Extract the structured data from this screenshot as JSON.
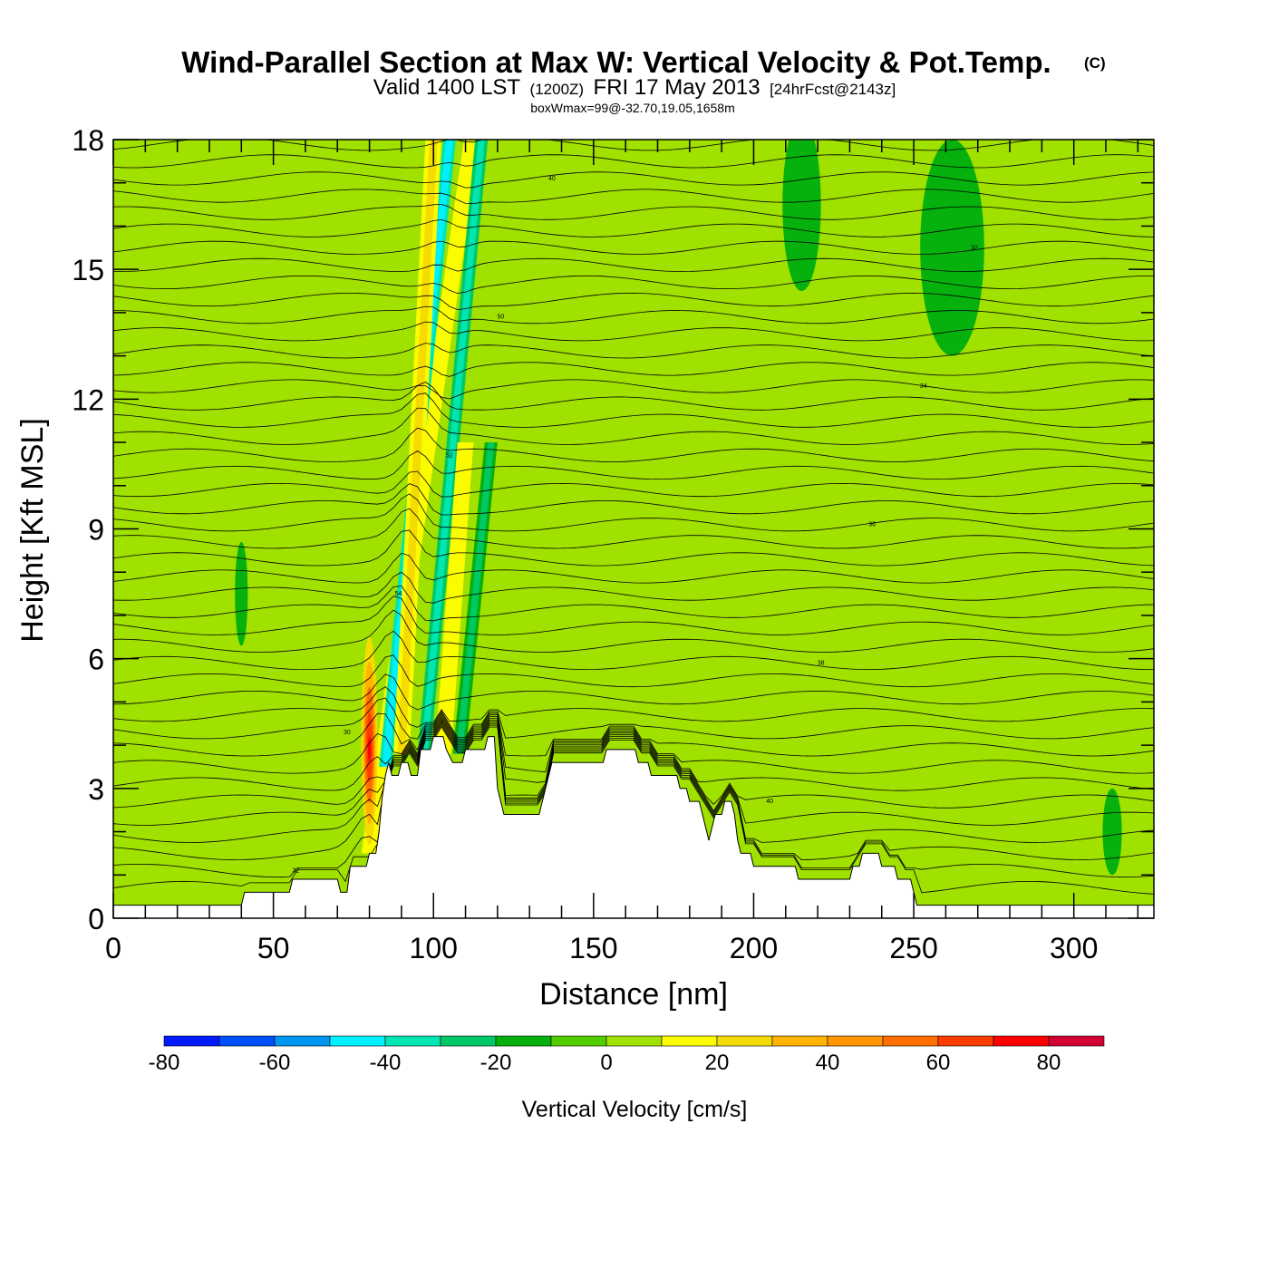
{
  "title": {
    "main": "Wind-Parallel Section at Max W: Vertical Velocity & Pot.Temp.",
    "copyright": "(C)",
    "line2_a": "Valid 1400 LST",
    "line2_b": "(1200Z)",
    "line2_c": "FRI 17 May 2013",
    "line2_d": "[24hrFcst@2143z]",
    "line3": "boxWmax=99@-32.70,19.05,1658m"
  },
  "chart_data": {
    "type": "heatmap",
    "xlabel": "Distance [nm]",
    "ylabel": "Height [Kft MSL]",
    "xlim": [
      0,
      325
    ],
    "ylim": [
      0,
      18
    ],
    "xticks": [
      "0",
      "50",
      "100",
      "150",
      "200",
      "250",
      "300"
    ],
    "yticks": [
      "0",
      "3",
      "6",
      "9",
      "12",
      "15",
      "18"
    ],
    "colorbar": {
      "title": "Vertical Velocity [cm/s]",
      "tick_labels": [
        "-80",
        "-60",
        "-40",
        "-20",
        "0",
        "20",
        "40",
        "60",
        "80"
      ],
      "bins": [
        -80,
        -70,
        -60,
        -50,
        -40,
        -30,
        -20,
        -10,
        0,
        10,
        20,
        30,
        40,
        50,
        60,
        70,
        80,
        90
      ],
      "colors": [
        "#0019ff",
        "#0050ff",
        "#0096f0",
        "#00f0ff",
        "#00e6b0",
        "#00c864",
        "#06b10e",
        "#52cd00",
        "#a0e100",
        "#fcfc00",
        "#f5dc00",
        "#ffb400",
        "#ff9600",
        "#ff6e00",
        "#ff3c00",
        "#ff0000",
        "#d20032"
      ]
    },
    "background_w_cms": 0,
    "plumes": [
      {
        "x_base": 80,
        "z_base": 1.5,
        "x_top": 112,
        "z_top": 18,
        "halfwidth_nm": 2.5,
        "w_cms": 15,
        "min_w_cms": 10
      },
      {
        "x_base": 85,
        "z_base": 3.5,
        "x_top": 105,
        "z_top": 18,
        "halfwidth_nm": 2.0,
        "w_cms": -45,
        "min_w_cms": -40
      },
      {
        "x_base": 90,
        "z_base": 3.8,
        "x_top": 100,
        "z_top": 18,
        "halfwidth_nm": 2.5,
        "w_cms": 20,
        "min_w_cms": 10
      },
      {
        "x_base": 97,
        "z_base": 3.8,
        "x_top": 115,
        "z_top": 18,
        "halfwidth_nm": 2.0,
        "w_cms": -35,
        "min_w_cms": -30
      },
      {
        "x_base": 103,
        "z_base": 3.8,
        "x_top": 110,
        "z_top": 11,
        "halfwidth_nm": 2.5,
        "w_cms": 15,
        "min_w_cms": 10
      },
      {
        "x_base": 108,
        "z_base": 3.8,
        "x_top": 118,
        "z_top": 11,
        "halfwidth_nm": 2.0,
        "w_cms": -25,
        "min_w_cms": -20
      }
    ],
    "peak_updraft": {
      "x_center": 80,
      "z_bottom": 1.7,
      "z_top": 6.5,
      "halfwidth_nm": 2.5,
      "w_max_cms": 75
    },
    "weak_updraft_patches": [
      {
        "x": 40,
        "z": 7.0,
        "rx_nm": 5,
        "rz_kft": 2.5,
        "w_cms": 5
      },
      {
        "x": 150,
        "z": 4.5,
        "rx_nm": 14,
        "rz_kft": 1.2,
        "w_cms": 5
      },
      {
        "x": 232,
        "z": 3.2,
        "rx_nm": 4,
        "rz_kft": 1.5,
        "w_cms": 5
      },
      {
        "x": 290,
        "z": 2.2,
        "rx_nm": 8,
        "rz_kft": 0.9,
        "w_cms": 5
      },
      {
        "x": 314,
        "z": 14.5,
        "rx_nm": 3,
        "rz_kft": 3.0,
        "w_cms": 5
      }
    ],
    "weak_downdraft_patches": [
      {
        "x": 215,
        "z": 16.5,
        "rx_nm": 6,
        "rz_kft": 2.0,
        "w_cms": -15
      },
      {
        "x": 262,
        "z": 15.5,
        "rx_nm": 10,
        "rz_kft": 2.5,
        "w_cms": -15
      },
      {
        "x": 40,
        "z": 7.5,
        "rx_nm": 2,
        "rz_kft": 1.2,
        "w_cms": -15
      },
      {
        "x": 312,
        "z": 2.0,
        "rx_nm": 3,
        "rz_kft": 1.0,
        "w_cms": -15
      }
    ],
    "terrain_kft": [
      [
        0,
        0.3
      ],
      [
        40,
        0.3
      ],
      [
        41,
        0.6
      ],
      [
        55,
        0.6
      ],
      [
        56,
        0.9
      ],
      [
        70,
        0.9
      ],
      [
        71,
        0.6
      ],
      [
        73,
        0.6
      ],
      [
        74,
        1.2
      ],
      [
        79,
        1.2
      ],
      [
        80,
        1.5
      ],
      [
        82,
        1.5
      ],
      [
        83,
        2.0
      ],
      [
        84,
        2.8
      ],
      [
        85,
        3.3
      ],
      [
        86,
        3.6
      ],
      [
        87,
        3.3
      ],
      [
        89,
        3.3
      ],
      [
        90,
        3.6
      ],
      [
        92,
        3.6
      ],
      [
        93,
        3.3
      ],
      [
        95,
        3.3
      ],
      [
        96,
        3.9
      ],
      [
        99,
        3.9
      ],
      [
        100,
        4.2
      ],
      [
        103,
        4.2
      ],
      [
        104,
        3.9
      ],
      [
        106,
        3.6
      ],
      [
        109,
        3.6
      ],
      [
        110,
        3.9
      ],
      [
        116,
        3.9
      ],
      [
        117,
        4.2
      ],
      [
        119,
        4.2
      ],
      [
        120,
        3.0
      ],
      [
        121,
        2.7
      ],
      [
        122,
        2.4
      ],
      [
        133,
        2.4
      ],
      [
        134,
        2.7
      ],
      [
        135,
        3.0
      ],
      [
        136,
        3.3
      ],
      [
        137,
        3.6
      ],
      [
        153,
        3.6
      ],
      [
        154,
        3.9
      ],
      [
        163,
        3.9
      ],
      [
        164,
        3.6
      ],
      [
        167,
        3.6
      ],
      [
        168,
        3.3
      ],
      [
        176,
        3.3
      ],
      [
        177,
        3.0
      ],
      [
        179,
        3.0
      ],
      [
        180,
        2.7
      ],
      [
        183,
        2.7
      ],
      [
        184,
        2.4
      ],
      [
        185,
        2.1
      ],
      [
        186,
        1.8
      ],
      [
        187,
        2.1
      ],
      [
        188,
        2.4
      ],
      [
        190,
        2.4
      ],
      [
        191,
        2.7
      ],
      [
        193,
        2.7
      ],
      [
        194,
        2.4
      ],
      [
        195,
        1.8
      ],
      [
        196,
        1.5
      ],
      [
        199,
        1.5
      ],
      [
        200,
        1.2
      ],
      [
        213,
        1.2
      ],
      [
        214,
        0.9
      ],
      [
        230,
        0.9
      ],
      [
        231,
        1.2
      ],
      [
        233,
        1.2
      ],
      [
        234,
        1.5
      ],
      [
        239,
        1.5
      ],
      [
        240,
        1.2
      ],
      [
        244,
        1.2
      ],
      [
        245,
        0.9
      ],
      [
        249,
        0.9
      ],
      [
        250,
        0.6
      ],
      [
        251,
        0.3
      ],
      [
        325,
        0.3
      ]
    ],
    "isentropes": {
      "count": 44,
      "label_values": [
        "30",
        "32",
        "34",
        "36",
        "38",
        "40",
        "50",
        "52",
        "54"
      ]
    }
  }
}
